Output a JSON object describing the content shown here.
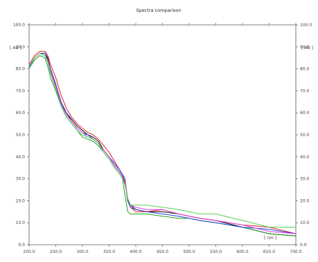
{
  "chart_data": {
    "type": "line",
    "title": "Spectra comparison",
    "xlabel": "[ nm ]",
    "ylabel": "[ AU ]",
    "ylabel_right": "[ AU ]",
    "xlim": [
      200,
      700
    ],
    "ylim": [
      0,
      100
    ],
    "x_ticks": [
      "200.0",
      "250.0",
      "300.0",
      "350.0",
      "400.0",
      "450.0",
      "500.0",
      "550.0",
      "600.0",
      "650.0",
      "700.0"
    ],
    "y_ticks": [
      "0.0",
      "10.0",
      "20.0",
      "30.0",
      "40.0",
      "50.0",
      "60.0",
      "70.0",
      "80.0",
      "90.0",
      "100.0"
    ],
    "grid": false,
    "legend": "none",
    "series": [
      {
        "color": "#000000",
        "x": [
          200,
          210,
          220,
          230,
          235,
          240,
          250,
          260,
          270,
          280,
          290,
          300,
          310,
          320,
          330,
          340,
          350,
          360,
          370,
          375,
          380,
          385,
          390,
          400,
          420,
          450,
          480,
          500,
          520,
          550,
          600,
          650,
          700
        ],
        "y": [
          80,
          85,
          87,
          87,
          85,
          80,
          73,
          64,
          60,
          57,
          54,
          52,
          50,
          49,
          47,
          43,
          40,
          36,
          33,
          31,
          28,
          20,
          18,
          16,
          15,
          15,
          14,
          13,
          12,
          11,
          8,
          5,
          4
        ]
      },
      {
        "color": "#e02020",
        "x": [
          200,
          210,
          220,
          230,
          235,
          240,
          250,
          260,
          270,
          280,
          290,
          300,
          310,
          320,
          330,
          340,
          350,
          360,
          370,
          375,
          380,
          385,
          390,
          400,
          420,
          450,
          480,
          500,
          520,
          550,
          600,
          650,
          700
        ],
        "y": [
          82,
          86,
          88,
          88,
          86,
          82,
          76,
          68,
          62,
          58,
          55,
          53,
          51,
          50,
          48,
          45,
          42,
          38,
          34,
          32,
          28,
          20,
          17,
          15,
          15,
          16,
          14,
          13,
          12,
          11,
          9,
          8,
          5
        ]
      },
      {
        "color": "#20a020",
        "x": [
          200,
          210,
          220,
          230,
          235,
          240,
          250,
          260,
          270,
          280,
          290,
          300,
          310,
          320,
          330,
          340,
          350,
          360,
          370,
          375,
          380,
          385,
          390,
          400,
          420,
          450,
          480,
          500,
          520,
          550,
          600,
          650,
          700
        ],
        "y": [
          80,
          84,
          86,
          85,
          81,
          76,
          70,
          63,
          58,
          55,
          52,
          49,
          48,
          47,
          45,
          42,
          39,
          35,
          32,
          30,
          22,
          15,
          14,
          14,
          14,
          13,
          12,
          12,
          11,
          10,
          8,
          5,
          4
        ]
      },
      {
        "color": "#2040e0",
        "x": [
          200,
          210,
          220,
          230,
          235,
          240,
          250,
          260,
          270,
          280,
          290,
          300,
          310,
          320,
          330,
          340,
          350,
          360,
          370,
          375,
          380,
          385,
          390,
          400,
          420,
          450,
          480,
          500,
          520,
          550,
          600,
          650,
          700
        ],
        "y": [
          81,
          85,
          87,
          87,
          84,
          80,
          73,
          65,
          60,
          56,
          53,
          51,
          50,
          48,
          46,
          43,
          40,
          37,
          34,
          32,
          30,
          20,
          17,
          16,
          15,
          14,
          13,
          12,
          11,
          10,
          8,
          7,
          5
        ]
      },
      {
        "color": "#e040e0",
        "x": [
          200,
          210,
          220,
          230,
          235,
          240,
          250,
          260,
          270,
          280,
          290,
          300,
          310,
          320,
          330,
          340,
          350,
          360,
          370,
          375,
          380,
          385,
          390,
          400,
          420,
          450,
          480,
          500,
          520,
          550,
          600,
          650,
          700
        ],
        "y": [
          80,
          85,
          87,
          86,
          84,
          79,
          72,
          64,
          59,
          56,
          53,
          51,
          49,
          48,
          46,
          43,
          40,
          36,
          33,
          31,
          29,
          21,
          18,
          17,
          16,
          16,
          14,
          13,
          12,
          11,
          9,
          6,
          5
        ]
      },
      {
        "color": "#50d050",
        "x": [
          200,
          210,
          220,
          230,
          235,
          240,
          250,
          260,
          270,
          280,
          290,
          300,
          310,
          320,
          330,
          340,
          350,
          360,
          370,
          375,
          380,
          385,
          390,
          400,
          420,
          450,
          480,
          500,
          520,
          550,
          600,
          650,
          700
        ],
        "y": [
          80,
          85,
          87,
          86,
          83,
          78,
          71,
          63,
          58,
          55,
          52,
          50,
          49,
          48,
          46,
          42,
          39,
          35,
          32,
          30,
          27,
          21,
          18,
          18,
          18,
          17,
          16,
          15,
          14,
          14,
          11,
          8,
          8
        ]
      }
    ]
  }
}
